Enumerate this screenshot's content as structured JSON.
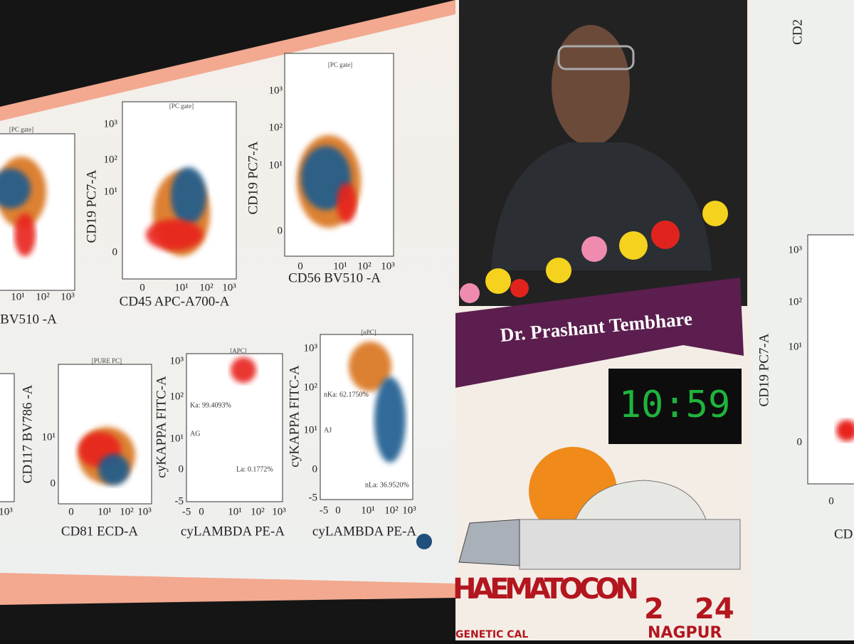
{
  "slide_left": {
    "plots": [
      {
        "gate": "[PC gate]",
        "x_label": "BV510 -A",
        "x_ticks": [
          "10¹",
          "10²",
          "10³"
        ]
      },
      {
        "gate": "[PC gate]",
        "y_label": "CD19 PC7-A",
        "y_ticks": [
          "10³",
          "10²",
          "10¹",
          "0"
        ],
        "x_label": "CD45 APC-A700-A",
        "x_ticks": [
          "0",
          "10¹",
          "10²",
          "10³"
        ]
      },
      {
        "gate": "[PC gate]",
        "y_label": "CD19 PC7-A",
        "y_ticks": [
          "10³",
          "10²",
          "10¹",
          "0"
        ],
        "x_label": "CD56 BV510 -A",
        "x_ticks": [
          "0",
          "10¹",
          "10²",
          "10³"
        ]
      },
      {
        "x_ticks": [
          "10³"
        ]
      },
      {
        "gate": "[PURE PC]",
        "y_label": "CD117 BV786 -A",
        "y_ticks": [
          "10¹",
          "0"
        ],
        "x_label": "CD81 ECD-A",
        "x_ticks": [
          "0",
          "10¹",
          "10²",
          "10³"
        ]
      },
      {
        "gate": "[APC]",
        "y_label": "cyKAPPA FITC-A",
        "y_ticks": [
          "10³",
          "10²",
          "10¹",
          "0",
          "-5"
        ],
        "x_label": "cyLAMBDA PE-A",
        "x_ticks": [
          "-5",
          "0",
          "10¹",
          "10²",
          "10³"
        ],
        "regions": [
          "Ka: 99.4093%",
          "AG",
          "La: 0.1772%"
        ]
      },
      {
        "gate": "[nPC]",
        "y_label": "cyKAPPA FITC-A",
        "y_ticks": [
          "10³",
          "10²",
          "10¹",
          "0",
          "-5"
        ],
        "x_label": "cyLAMBDA PE-A",
        "x_ticks": [
          "-5",
          "0",
          "10¹",
          "10²",
          "10³"
        ],
        "regions": [
          "nKa: 62.1750%",
          "AJ",
          "nLa: 36.9520%"
        ]
      }
    ]
  },
  "speaker": {
    "name": "Dr. Prashant Tembhare",
    "timer": "10:59"
  },
  "banner": {
    "title": "HAEMATOCON",
    "year_start": "2",
    "year_end": "24",
    "city": "NAGPUR",
    "tagline": "GENETIC CAL"
  },
  "slide_right": {
    "top_label": "CD2",
    "y_label": "CD19 PC7-A",
    "y_ticks": [
      "10³",
      "10²",
      "10¹",
      "0"
    ],
    "x_ticks": [
      "0"
    ],
    "x_label": "CD"
  }
}
